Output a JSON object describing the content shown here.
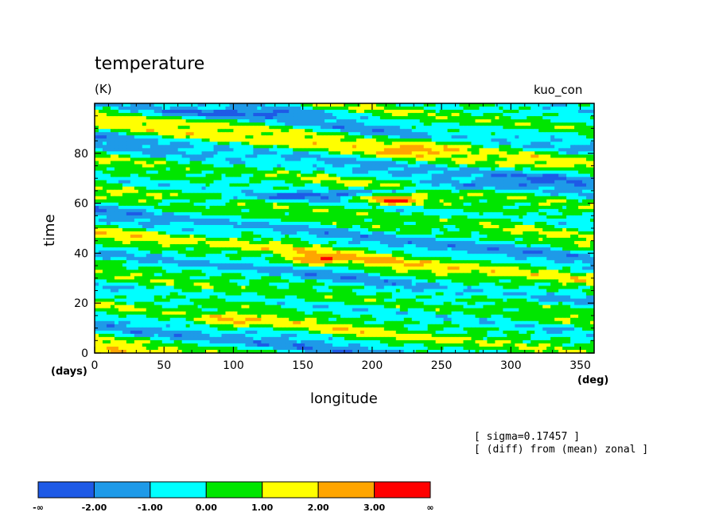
{
  "chart_data": {
    "type": "heatmap",
    "title": "temperature",
    "units": "(K)",
    "run_label": "kuo_con",
    "xlabel": "longitude",
    "ylabel": "time",
    "x_unit": "(deg)",
    "y_unit": "(days)",
    "xlim": [
      0,
      360
    ],
    "ylim": [
      0,
      100
    ],
    "xticks": [
      0,
      50,
      100,
      150,
      200,
      250,
      300,
      350
    ],
    "yticks": [
      0,
      20,
      40,
      60,
      80
    ],
    "annotations": [
      "[ sigma=0.17457 ]",
      "[ (diff) from (mean) zonal ]"
    ],
    "levels": [
      {
        "label": "-∞",
        "color": "#1e5ae6"
      },
      {
        "label": "-2.00",
        "color": "#1e9ae8"
      },
      {
        "label": "-1.00",
        "color": "#00ffff"
      },
      {
        "label": "0.00",
        "color": "#00e600"
      },
      {
        "label": "1.00",
        "color": "#ffff00"
      },
      {
        "label": "2.00",
        "color": "#ffa500"
      },
      {
        "label": "3.00",
        "color": "#ff0000"
      }
    ],
    "colorbar_labels": [
      "-∞",
      "-2.00",
      "-1.00",
      "0.00",
      "1.00",
      "2.00",
      "3.00",
      "∞"
    ],
    "colorbar_colors": [
      "#1e5ae6",
      "#1e9ae8",
      "#00ffff",
      "#00e600",
      "#ffff00",
      "#ffa500",
      "#ff0000"
    ]
  }
}
